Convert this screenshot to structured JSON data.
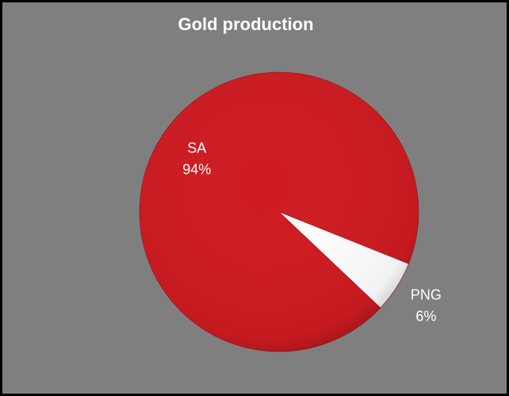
{
  "chart_data": {
    "type": "pie",
    "title": "Gold production",
    "categories": [
      "SA",
      "PNG"
    ],
    "values": [
      94,
      6
    ],
    "value_labels": [
      "94%",
      "6%"
    ],
    "colors": [
      "#cf1b22",
      "#ffffff"
    ]
  }
}
